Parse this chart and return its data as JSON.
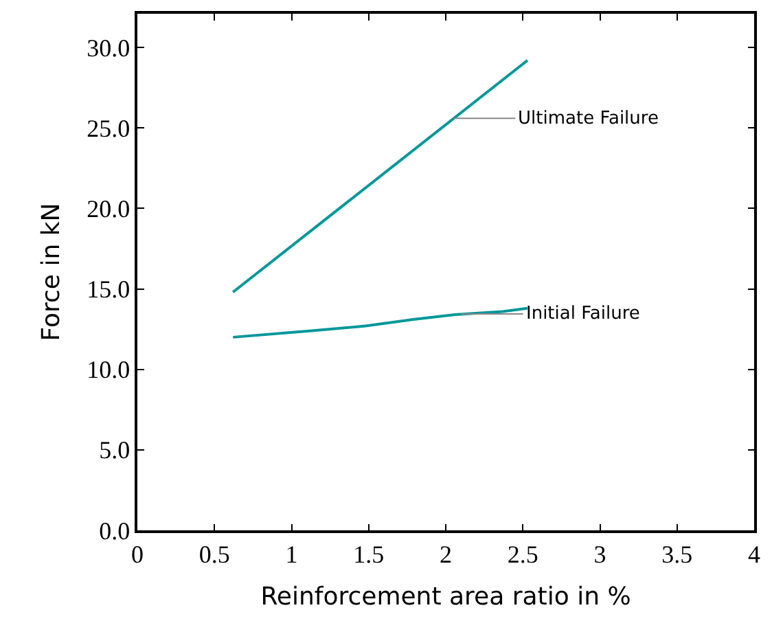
{
  "chart_data": {
    "type": "line",
    "xlabel": "Reinforcement area ratio in %",
    "ylabel": "Force in kN",
    "xlim": [
      0,
      4
    ],
    "xticks": [
      0,
      0.5,
      1,
      1.5,
      2,
      2.5,
      3,
      3.5,
      4
    ],
    "ylim": [
      0,
      32.1
    ],
    "yticks": [
      {
        "value": 0,
        "label": "0.0"
      },
      {
        "value": 5,
        "label": "5.0"
      },
      {
        "value": 10,
        "label": "10.0"
      },
      {
        "value": 15,
        "label": "15.0"
      },
      {
        "value": 20,
        "label": "20.0"
      },
      {
        "value": 25,
        "label": "25.0"
      },
      {
        "value": 30,
        "label": "30.0"
      }
    ],
    "marker": "none",
    "line_style": "solid",
    "series": [
      {
        "color": "#00979a",
        "x": [
          0.62,
          2.53
        ],
        "values": [
          14.8,
          29.2
        ]
      },
      {
        "color": "#00979a",
        "x": [
          0.62,
          1.13,
          1.48,
          1.79,
          2.06,
          2.37,
          2.53
        ],
        "values": [
          12.0,
          12.4,
          12.7,
          13.1,
          13.4,
          13.6,
          13.8
        ]
      }
    ],
    "annotations": [
      {
        "text": "Ultimate Failure",
        "x": 2.05,
        "y": 25.6
      },
      {
        "text": "Initial Failure",
        "x": 2.1,
        "y": 13.45
      }
    ]
  }
}
